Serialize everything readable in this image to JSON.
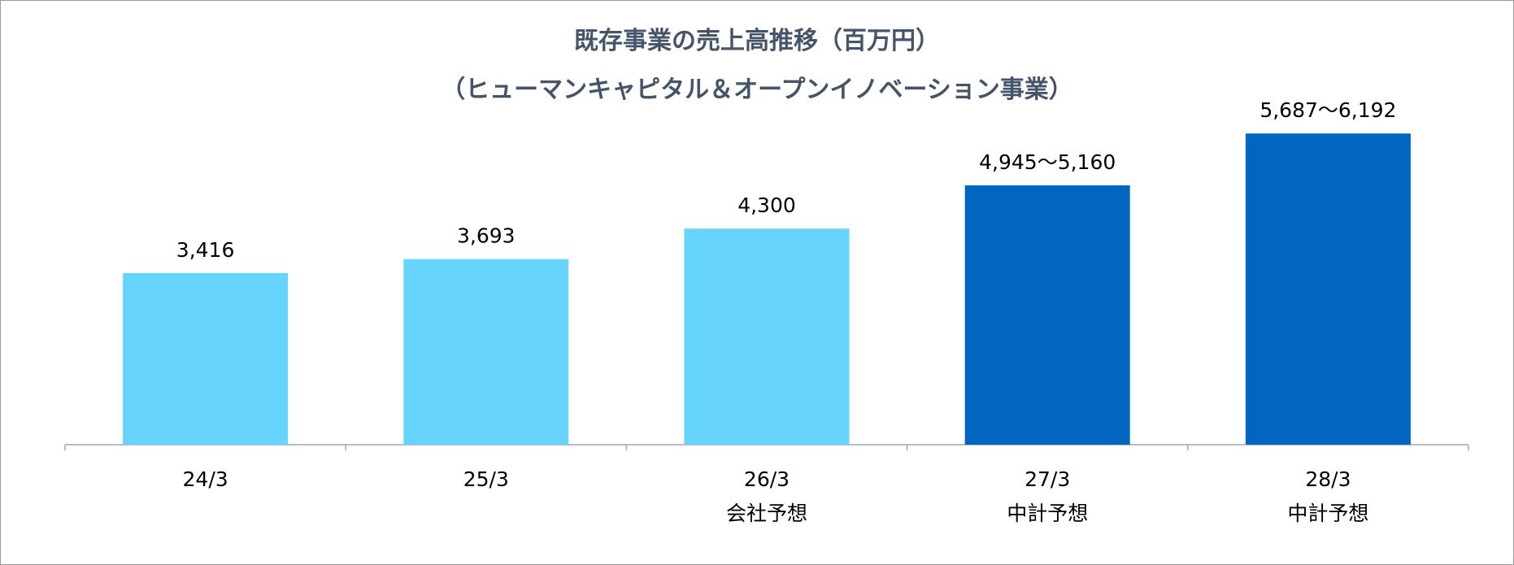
{
  "title_line1": "既存事業の売上高推移（百万円）",
  "title_line2": "（ヒューマンキャピタル＆オープンイノベーション事業）",
  "chart_data": {
    "type": "bar",
    "title": "既存事業の売上高推移（百万円）",
    "subtitle": "（ヒューマンキャピタル＆オープンイノベーション事業）",
    "categories": [
      "24/3",
      "25/3",
      "26/3",
      "27/3",
      "28/3"
    ],
    "category_sublabels": [
      "",
      "",
      "会社予想",
      "中計予想",
      "中計予想"
    ],
    "values": [
      3416,
      3693,
      4300,
      5160,
      6192
    ],
    "range_low": [
      null,
      null,
      null,
      4945,
      5687
    ],
    "data_labels": [
      "3,416",
      "3,693",
      "4,300",
      "4,945〜5,160",
      "5,687〜6,192"
    ],
    "bar_colors": [
      "#66d4fc",
      "#66d4fc",
      "#66d4fc",
      "#0066c0",
      "#0066c0"
    ],
    "ylim": [
      0,
      6600
    ],
    "grid": false,
    "legend": "none",
    "xlabel": "",
    "ylabel": ""
  }
}
